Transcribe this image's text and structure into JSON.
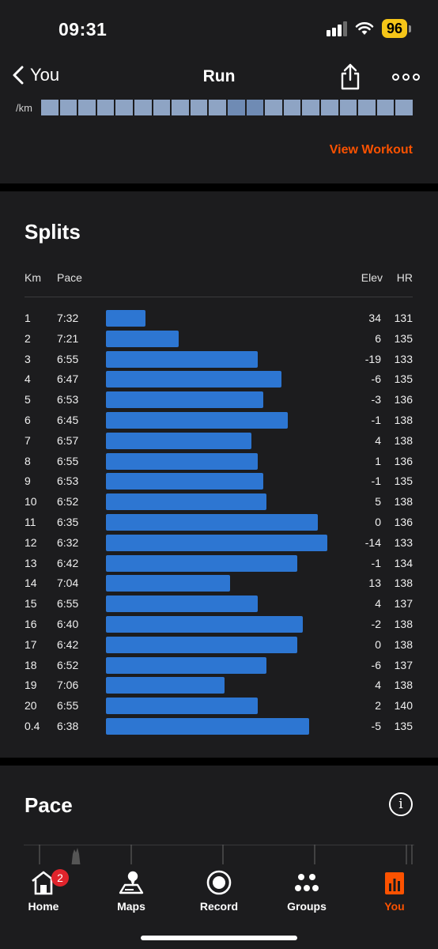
{
  "status_bar": {
    "time": "09:31",
    "battery": "96"
  },
  "nav": {
    "back_label": "You",
    "title": "Run"
  },
  "pace_strip": {
    "unit_label": "/km",
    "segments": 20,
    "dark_segments": [
      10,
      11
    ]
  },
  "view_workout_label": "View Workout",
  "splits": {
    "title": "Splits",
    "headers": {
      "km": "Km",
      "pace": "Pace",
      "elev": "Elev",
      "hr": "HR"
    },
    "rows": [
      {
        "km": "1",
        "pace": "7:32",
        "elev": "34",
        "hr": "131",
        "pace_sec": 452
      },
      {
        "km": "2",
        "pace": "7:21",
        "elev": "6",
        "hr": "135",
        "pace_sec": 441
      },
      {
        "km": "3",
        "pace": "6:55",
        "elev": "-19",
        "hr": "133",
        "pace_sec": 415
      },
      {
        "km": "4",
        "pace": "6:47",
        "elev": "-6",
        "hr": "135",
        "pace_sec": 407
      },
      {
        "km": "5",
        "pace": "6:53",
        "elev": "-3",
        "hr": "136",
        "pace_sec": 413
      },
      {
        "km": "6",
        "pace": "6:45",
        "elev": "-1",
        "hr": "138",
        "pace_sec": 405
      },
      {
        "km": "7",
        "pace": "6:57",
        "elev": "4",
        "hr": "138",
        "pace_sec": 417
      },
      {
        "km": "8",
        "pace": "6:55",
        "elev": "1",
        "hr": "136",
        "pace_sec": 415
      },
      {
        "km": "9",
        "pace": "6:53",
        "elev": "-1",
        "hr": "135",
        "pace_sec": 413
      },
      {
        "km": "10",
        "pace": "6:52",
        "elev": "5",
        "hr": "138",
        "pace_sec": 412
      },
      {
        "km": "11",
        "pace": "6:35",
        "elev": "0",
        "hr": "136",
        "pace_sec": 395
      },
      {
        "km": "12",
        "pace": "6:32",
        "elev": "-14",
        "hr": "133",
        "pace_sec": 392
      },
      {
        "km": "13",
        "pace": "6:42",
        "elev": "-1",
        "hr": "134",
        "pace_sec": 402
      },
      {
        "km": "14",
        "pace": "7:04",
        "elev": "13",
        "hr": "138",
        "pace_sec": 424
      },
      {
        "km": "15",
        "pace": "6:55",
        "elev": "4",
        "hr": "137",
        "pace_sec": 415
      },
      {
        "km": "16",
        "pace": "6:40",
        "elev": "-2",
        "hr": "138",
        "pace_sec": 400
      },
      {
        "km": "17",
        "pace": "6:42",
        "elev": "0",
        "hr": "138",
        "pace_sec": 402
      },
      {
        "km": "18",
        "pace": "6:52",
        "elev": "-6",
        "hr": "137",
        "pace_sec": 412
      },
      {
        "km": "19",
        "pace": "7:06",
        "elev": "4",
        "hr": "138",
        "pace_sec": 426
      },
      {
        "km": "20",
        "pace": "6:55",
        "elev": "2",
        "hr": "140",
        "pace_sec": 415
      },
      {
        "km": "0.4",
        "pace": "6:38",
        "elev": "-5",
        "hr": "135",
        "pace_sec": 398
      }
    ]
  },
  "pace_section": {
    "title": "Pace",
    "info_icon": "i"
  },
  "tabs": [
    {
      "label": "Home",
      "icon": "home-icon",
      "badge": "2",
      "active": false
    },
    {
      "label": "Maps",
      "icon": "maps-icon",
      "active": false
    },
    {
      "label": "Record",
      "icon": "record-icon",
      "active": false
    },
    {
      "label": "Groups",
      "icon": "groups-icon",
      "active": false
    },
    {
      "label": "You",
      "icon": "you-icon",
      "active": true
    }
  ],
  "colors": {
    "accent": "#fc5200",
    "bar": "#2d76d2",
    "card": "#1c1c1e",
    "background": "#000000"
  }
}
